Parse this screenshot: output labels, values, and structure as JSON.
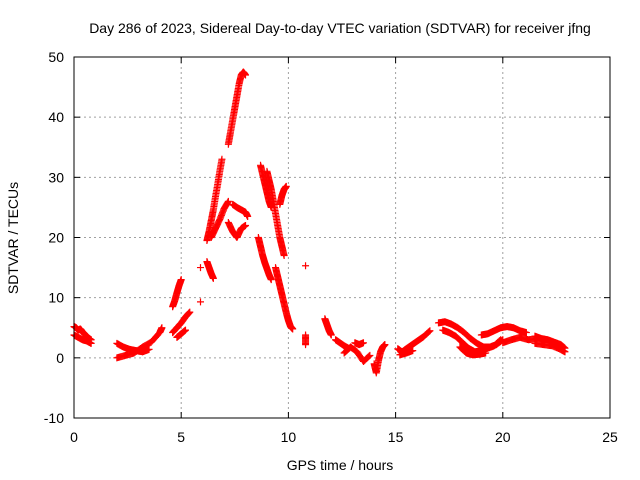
{
  "colors": {
    "series": "#ff0000",
    "axis": "#000000",
    "grid": "#a0a0a0",
    "background": "#ffffff"
  },
  "chart_data": {
    "type": "scatter",
    "title": "Day 286 of 2023, Sidereal Day-to-day VTEC variation (SDTVAR) for receiver jfng",
    "xlabel": "GPS time / hours",
    "ylabel": "SDTVAR / TECUs",
    "xlim": [
      0,
      25
    ],
    "ylim": [
      -10,
      50
    ],
    "xticks": [
      0,
      5,
      10,
      15,
      20,
      25
    ],
    "yticks": [
      -10,
      0,
      10,
      20,
      30,
      40,
      50
    ],
    "grid": true,
    "marker": "+",
    "series": [
      {
        "name": "SDTVAR",
        "segments": [
          [
            [
              0.0,
              5.2
            ],
            [
              0.1,
              5.0
            ],
            [
              0.2,
              4.6
            ],
            [
              0.3,
              4.8
            ],
            [
              0.4,
              4.3
            ],
            [
              0.5,
              3.9
            ],
            [
              0.6,
              3.6
            ],
            [
              0.7,
              3.2
            ],
            [
              0.8,
              3.0
            ]
          ],
          [
            [
              0.0,
              3.8
            ],
            [
              0.2,
              3.4
            ],
            [
              0.4,
              3.0
            ],
            [
              0.6,
              2.8
            ],
            [
              0.8,
              2.4
            ]
          ],
          [
            [
              2.0,
              2.4
            ],
            [
              2.3,
              1.8
            ],
            [
              2.6,
              1.4
            ],
            [
              2.9,
              1.2
            ],
            [
              3.2,
              1.0
            ],
            [
              3.5,
              1.4
            ]
          ],
          [
            [
              2.0,
              0.0
            ],
            [
              2.4,
              0.4
            ],
            [
              2.8,
              0.8
            ],
            [
              3.2,
              1.8
            ],
            [
              3.6,
              2.6
            ],
            [
              4.0,
              4.2
            ],
            [
              4.1,
              5.0
            ]
          ],
          [
            [
              4.6,
              8.5
            ],
            [
              4.7,
              9.5
            ],
            [
              4.8,
              10.8
            ],
            [
              4.9,
              12.0
            ],
            [
              5.0,
              13.0
            ]
          ],
          [
            [
              4.6,
              4.2
            ],
            [
              4.8,
              5.0
            ],
            [
              5.0,
              5.8
            ],
            [
              5.2,
              6.8
            ],
            [
              5.4,
              7.6
            ]
          ],
          [
            [
              4.8,
              3.4
            ],
            [
              5.0,
              4.0
            ],
            [
              5.2,
              4.6
            ]
          ],
          [
            [
              5.9,
              9.3
            ]
          ],
          [
            [
              5.9,
              15.0
            ]
          ],
          [
            [
              6.2,
              16.0
            ],
            [
              6.3,
              15.0
            ],
            [
              6.4,
              14.0
            ],
            [
              6.5,
              13.2
            ]
          ],
          [
            [
              6.2,
              19.5
            ],
            [
              6.3,
              21.0
            ],
            [
              6.4,
              22.8
            ],
            [
              6.5,
              24.6
            ],
            [
              6.6,
              26.8
            ],
            [
              6.7,
              28.8
            ],
            [
              6.8,
              31.0
            ],
            [
              6.9,
              33.0
            ]
          ],
          [
            [
              6.4,
              20.0
            ],
            [
              6.6,
              21.5
            ],
            [
              6.8,
              23.0
            ],
            [
              7.0,
              24.8
            ],
            [
              7.2,
              26.0
            ]
          ],
          [
            [
              7.2,
              35.5
            ],
            [
              7.3,
              37.5
            ],
            [
              7.4,
              39.5
            ],
            [
              7.5,
              41.5
            ],
            [
              7.6,
              43.5
            ],
            [
              7.7,
              45.5
            ],
            [
              7.8,
              47.0
            ],
            [
              7.9,
              47.5
            ],
            [
              8.0,
              47.0
            ]
          ],
          [
            [
              7.2,
              22.5
            ],
            [
              7.4,
              21.0
            ],
            [
              7.6,
              20.0
            ],
            [
              7.8,
              21.5
            ],
            [
              8.0,
              22.0
            ]
          ],
          [
            [
              7.4,
              25.5
            ],
            [
              7.6,
              25.0
            ],
            [
              7.8,
              24.6
            ],
            [
              8.0,
              24.2
            ],
            [
              8.1,
              23.5
            ]
          ],
          [
            [
              8.6,
              20.0
            ],
            [
              8.7,
              18.5
            ],
            [
              8.8,
              17.0
            ],
            [
              8.9,
              15.8
            ],
            [
              9.0,
              14.8
            ],
            [
              9.1,
              13.8
            ],
            [
              9.2,
              13.0
            ]
          ],
          [
            [
              8.7,
              32.0
            ],
            [
              8.8,
              30.5
            ],
            [
              8.9,
              29.0
            ],
            [
              9.0,
              27.5
            ],
            [
              9.1,
              26.0
            ],
            [
              9.2,
              25.0
            ]
          ],
          [
            [
              9.0,
              31.0
            ],
            [
              9.1,
              29.5
            ],
            [
              9.2,
              28.0
            ],
            [
              9.3,
              26.0
            ],
            [
              9.4,
              24.0
            ],
            [
              9.5,
              22.0
            ],
            [
              9.6,
              20.0
            ],
            [
              9.7,
              18.5
            ],
            [
              9.8,
              17.0
            ]
          ],
          [
            [
              9.6,
              25.5
            ],
            [
              9.7,
              27.0
            ],
            [
              9.8,
              28.0
            ],
            [
              9.9,
              28.5
            ]
          ],
          [
            [
              9.4,
              15.0
            ],
            [
              9.5,
              13.5
            ],
            [
              9.6,
              12.0
            ],
            [
              9.7,
              10.5
            ],
            [
              9.8,
              9.0
            ],
            [
              9.9,
              7.5
            ],
            [
              10.0,
              6.2
            ],
            [
              10.1,
              5.2
            ],
            [
              10.2,
              4.8
            ]
          ],
          [
            [
              10.8,
              15.3
            ]
          ],
          [
            [
              10.8,
              3.8
            ],
            [
              10.8,
              2.2
            ]
          ],
          [
            [
              11.7,
              6.5
            ],
            [
              11.8,
              5.5
            ],
            [
              11.9,
              4.5
            ],
            [
              12.0,
              3.8
            ]
          ],
          [
            [
              12.2,
              3.0
            ],
            [
              12.4,
              2.5
            ],
            [
              12.6,
              2.0
            ],
            [
              12.8,
              1.6
            ]
          ],
          [
            [
              12.6,
              0.8
            ],
            [
              12.9,
              1.8
            ],
            [
              13.2,
              1.0
            ],
            [
              13.5,
              -0.6
            ],
            [
              13.8,
              0.4
            ]
          ],
          [
            [
              13.1,
              2.5
            ],
            [
              13.3,
              2.2
            ],
            [
              13.5,
              2.5
            ]
          ],
          [
            [
              14.0,
              -1.0
            ],
            [
              14.1,
              -2.5
            ],
            [
              14.2,
              -0.5
            ],
            [
              14.3,
              1.0
            ],
            [
              14.4,
              1.8
            ],
            [
              14.5,
              2.2
            ]
          ],
          [
            [
              15.1,
              1.5
            ],
            [
              15.3,
              1.0
            ],
            [
              15.5,
              1.5
            ],
            [
              15.7,
              2.0
            ],
            [
              15.9,
              2.5
            ],
            [
              16.1,
              3.0
            ],
            [
              16.3,
              3.5
            ],
            [
              16.6,
              4.5
            ]
          ],
          [
            [
              15.2,
              0.5
            ],
            [
              15.5,
              0.8
            ],
            [
              15.8,
              1.2
            ]
          ],
          [
            [
              17.0,
              5.8
            ],
            [
              17.3,
              6.0
            ],
            [
              17.6,
              5.6
            ],
            [
              17.9,
              5.0
            ],
            [
              18.2,
              4.2
            ],
            [
              18.5,
              3.2
            ],
            [
              18.8,
              2.4
            ],
            [
              19.1,
              1.8
            ],
            [
              19.4,
              1.8
            ],
            [
              19.7,
              2.2
            ],
            [
              20.0,
              3.0
            ]
          ],
          [
            [
              17.2,
              4.6
            ],
            [
              17.5,
              4.2
            ],
            [
              17.8,
              3.6
            ],
            [
              18.1,
              2.6
            ],
            [
              18.4,
              1.6
            ],
            [
              18.7,
              1.0
            ],
            [
              19.0,
              1.2
            ],
            [
              19.3,
              1.6
            ],
            [
              19.6,
              2.0
            ],
            [
              19.9,
              3.0
            ]
          ],
          [
            [
              18.0,
              1.8
            ],
            [
              18.3,
              0.8
            ],
            [
              18.6,
              0.5
            ],
            [
              18.9,
              0.6
            ],
            [
              19.2,
              0.8
            ]
          ],
          [
            [
              19.0,
              3.8
            ],
            [
              19.3,
              4.0
            ],
            [
              19.6,
              4.5
            ],
            [
              19.9,
              5.0
            ],
            [
              20.2,
              5.2
            ],
            [
              20.5,
              5.0
            ],
            [
              20.8,
              4.5
            ],
            [
              21.1,
              4.2
            ]
          ],
          [
            [
              20.0,
              2.5
            ],
            [
              20.4,
              3.0
            ],
            [
              20.8,
              3.4
            ],
            [
              21.2,
              3.0
            ],
            [
              21.6,
              3.2
            ]
          ],
          [
            [
              21.5,
              3.6
            ],
            [
              21.8,
              3.2
            ],
            [
              22.1,
              3.0
            ],
            [
              22.4,
              2.6
            ],
            [
              22.7,
              2.2
            ],
            [
              22.9,
              1.6
            ]
          ],
          [
            [
              21.5,
              2.4
            ],
            [
              21.9,
              2.2
            ],
            [
              22.3,
              2.0
            ],
            [
              22.7,
              1.4
            ],
            [
              22.9,
              1.0
            ]
          ]
        ]
      }
    ]
  }
}
